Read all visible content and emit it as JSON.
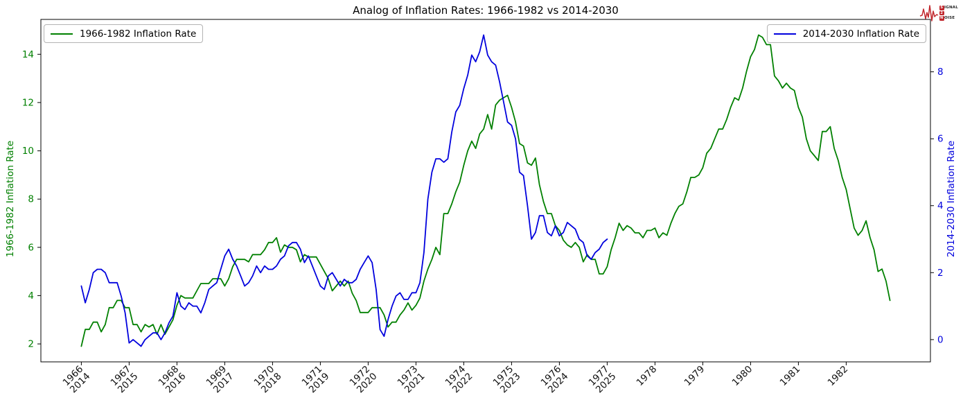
{
  "title": "Analog of Inflation Rates: 1966-1982 vs 2014-2030",
  "legend_left": {
    "label": "1966-1982 Inflation Rate"
  },
  "legend_right": {
    "label": "2014-2030 Inflation Rate"
  },
  "logo": {
    "color": "#c1272d",
    "rows": [
      {
        "boxed": "S",
        "rest": "IGNAL"
      },
      {
        "boxed": "2",
        "rest": ""
      },
      {
        "boxed": "N",
        "rest": "OISE"
      }
    ]
  },
  "chart_data": {
    "type": "line",
    "title": "Analog of Inflation Rates: 1966-1982 vs 2014-2030",
    "grid": false,
    "legend_positions": [
      "upper left",
      "upper right"
    ],
    "x_tick_labels": [
      [
        "1966",
        "2014"
      ],
      [
        "1967",
        "2015"
      ],
      [
        "1968",
        "2016"
      ],
      [
        "1969",
        "2017"
      ],
      [
        "1970",
        "2018"
      ],
      [
        "1971",
        "2019"
      ],
      [
        "1972",
        "2020"
      ],
      [
        "1973",
        "2021"
      ],
      [
        "1974",
        "2022"
      ],
      [
        "1975",
        "2023"
      ],
      [
        "1976",
        "2024"
      ],
      [
        "1977",
        "2025"
      ],
      [
        "1978"
      ],
      [
        "1979"
      ],
      [
        "1980"
      ],
      [
        "1981"
      ],
      [
        "1982"
      ]
    ],
    "months_per_tick": 12,
    "xlim_months": [
      -10.15,
      213.15
    ],
    "left_axis": {
      "label": "1966-1982 Inflation Rate",
      "color": "#008000",
      "ticks": [
        2,
        4,
        6,
        8,
        10,
        12,
        14
      ],
      "ylim": [
        1.255,
        15.445
      ]
    },
    "right_axis": {
      "label": "2014-2030 Inflation Rate",
      "color": "#0000dd",
      "ticks": [
        0,
        2,
        4,
        6,
        8
      ],
      "ylim": [
        -0.665,
        9.565
      ]
    },
    "series": [
      {
        "name": "1966-1982 Inflation Rate",
        "axis": "left",
        "color": "#008000",
        "start_year_label": "1966",
        "frequency": "monthly",
        "values": [
          1.9,
          2.6,
          2.6,
          2.9,
          2.9,
          2.5,
          2.8,
          3.5,
          3.5,
          3.8,
          3.8,
          3.5,
          3.5,
          2.8,
          2.8,
          2.5,
          2.8,
          2.7,
          2.8,
          2.4,
          2.8,
          2.4,
          2.7,
          3.0,
          3.6,
          4.0,
          3.9,
          3.9,
          3.9,
          4.2,
          4.5,
          4.5,
          4.5,
          4.7,
          4.7,
          4.7,
          4.4,
          4.7,
          5.2,
          5.5,
          5.5,
          5.5,
          5.4,
          5.7,
          5.7,
          5.7,
          5.9,
          6.2,
          6.2,
          6.4,
          5.8,
          6.1,
          6.0,
          6.0,
          5.9,
          5.4,
          5.7,
          5.6,
          5.6,
          5.6,
          5.3,
          5.0,
          4.7,
          4.2,
          4.4,
          4.6,
          4.4,
          4.6,
          4.1,
          3.8,
          3.3,
          3.3,
          3.3,
          3.5,
          3.5,
          3.5,
          3.2,
          2.7,
          2.9,
          2.9,
          3.2,
          3.4,
          3.7,
          3.4,
          3.6,
          3.9,
          4.6,
          5.1,
          5.5,
          6.0,
          5.7,
          7.4,
          7.4,
          7.8,
          8.3,
          8.7,
          9.4,
          10.0,
          10.4,
          10.1,
          10.7,
          10.9,
          11.5,
          10.9,
          11.9,
          12.1,
          12.2,
          12.3,
          11.8,
          11.2,
          10.3,
          10.2,
          9.5,
          9.4,
          9.7,
          8.6,
          7.9,
          7.4,
          7.4,
          6.9,
          6.7,
          6.3,
          6.1,
          6.0,
          6.2,
          6.0,
          5.4,
          5.7,
          5.5,
          5.5,
          4.9,
          4.9,
          5.2,
          5.9,
          6.4,
          7.0,
          6.7,
          6.9,
          6.8,
          6.6,
          6.6,
          6.4,
          6.7,
          6.7,
          6.8,
          6.4,
          6.6,
          6.5,
          7.0,
          7.4,
          7.7,
          7.8,
          8.3,
          8.9,
          8.9,
          9.0,
          9.3,
          9.9,
          10.1,
          10.5,
          10.9,
          10.9,
          11.3,
          11.8,
          12.2,
          12.1,
          12.6,
          13.3,
          13.9,
          14.2,
          14.8,
          14.7,
          14.4,
          14.4,
          13.1,
          12.9,
          12.6,
          12.8,
          12.6,
          12.5,
          11.8,
          11.4,
          10.5,
          10.0,
          9.8,
          9.6,
          10.8,
          10.8,
          11.0,
          10.1,
          9.6,
          8.9,
          8.4,
          7.6,
          6.8,
          6.5,
          6.7,
          7.1,
          6.4,
          5.9,
          5.0,
          5.1,
          4.6,
          3.8
        ]
      },
      {
        "name": "2014-2030 Inflation Rate",
        "axis": "right",
        "color": "#0000dd",
        "start_year_label": "2014",
        "frequency": "monthly",
        "values": [
          1.6,
          1.1,
          1.5,
          2.0,
          2.1,
          2.1,
          2.0,
          1.7,
          1.7,
          1.7,
          1.3,
          0.8,
          -0.1,
          0.0,
          -0.1,
          -0.2,
          0.0,
          0.1,
          0.2,
          0.2,
          0.0,
          0.2,
          0.5,
          0.7,
          1.4,
          1.0,
          0.9,
          1.1,
          1.0,
          1.0,
          0.8,
          1.1,
          1.5,
          1.6,
          1.7,
          2.1,
          2.5,
          2.7,
          2.4,
          2.2,
          1.9,
          1.6,
          1.7,
          1.9,
          2.2,
          2.0,
          2.2,
          2.1,
          2.1,
          2.2,
          2.4,
          2.5,
          2.8,
          2.9,
          2.9,
          2.7,
          2.3,
          2.5,
          2.2,
          1.9,
          1.6,
          1.5,
          1.9,
          2.0,
          1.8,
          1.6,
          1.8,
          1.7,
          1.7,
          1.8,
          2.1,
          2.3,
          2.5,
          2.3,
          1.5,
          0.3,
          0.1,
          0.6,
          1.0,
          1.3,
          1.4,
          1.2,
          1.2,
          1.4,
          1.4,
          1.7,
          2.6,
          4.2,
          5.0,
          5.4,
          5.4,
          5.3,
          5.4,
          6.2,
          6.8,
          7.0,
          7.5,
          7.9,
          8.5,
          8.3,
          8.6,
          9.1,
          8.5,
          8.3,
          8.2,
          7.7,
          7.1,
          6.5,
          6.4,
          6.0,
          5.0,
          4.9,
          4.0,
          3.0,
          3.2,
          3.7,
          3.7,
          3.2,
          3.1,
          3.4,
          3.1,
          3.2,
          3.5,
          3.4,
          3.3,
          3.0,
          2.9,
          2.5,
          2.4,
          2.6,
          2.7,
          2.9,
          3.0
        ]
      }
    ]
  }
}
